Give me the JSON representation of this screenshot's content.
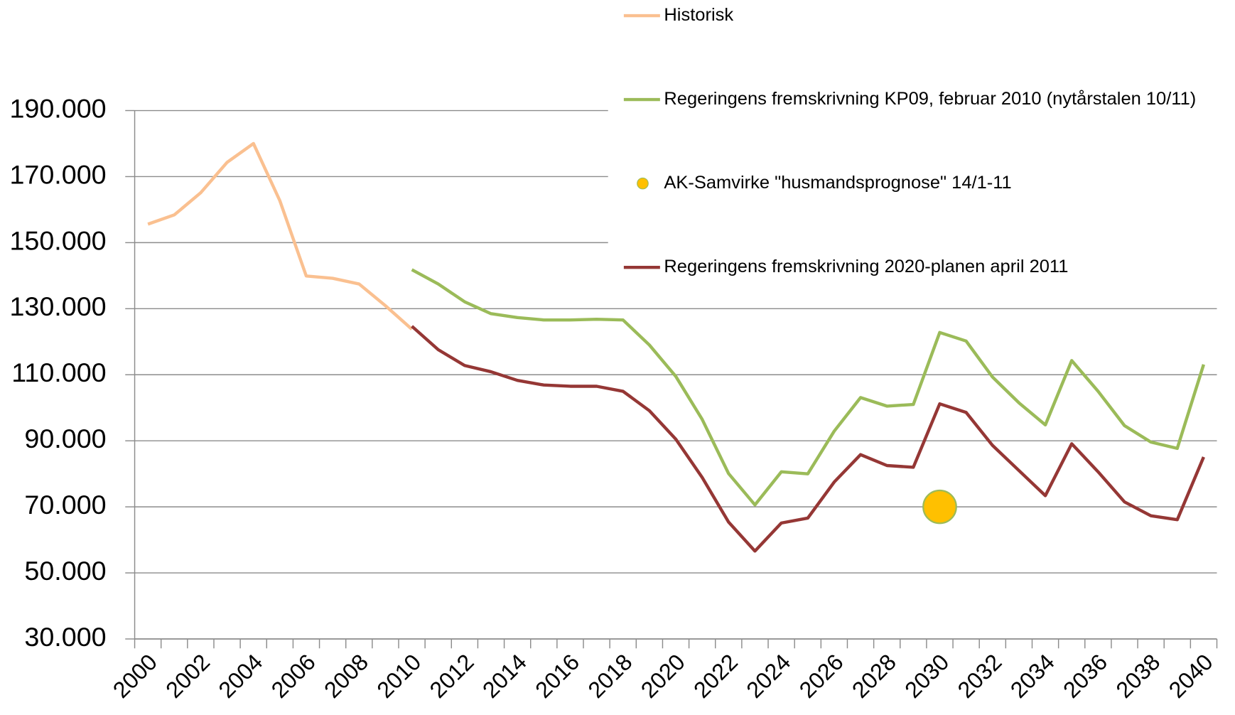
{
  "chart_data": {
    "type": "line",
    "categories": [
      "2000",
      null,
      "2002",
      null,
      "2004",
      null,
      "2006",
      null,
      "2008",
      null,
      "2010",
      null,
      "2012",
      null,
      "2014",
      null,
      "2016",
      null,
      "2018",
      null,
      "2020",
      null,
      "2022",
      null,
      "2024",
      null,
      "2026",
      null,
      "2028",
      null,
      "2030",
      null,
      "2032",
      null,
      "2034",
      null,
      "2036",
      null,
      "2038",
      null,
      "2040"
    ],
    "ylim": [
      30000,
      190000
    ],
    "yticks": [
      {
        "value": 30000,
        "label": "30.000"
      },
      {
        "value": 50000,
        "label": "50.000"
      },
      {
        "value": 70000,
        "label": "70.000"
      },
      {
        "value": 90000,
        "label": "90.000"
      },
      {
        "value": 110000,
        "label": "110.000"
      },
      {
        "value": 130000,
        "label": "130.000"
      },
      {
        "value": 150000,
        "label": "150.000"
      },
      {
        "value": 170000,
        "label": "170.000"
      },
      {
        "value": 190000,
        "label": "190.000"
      }
    ],
    "grid": true,
    "legend": "top-right",
    "series": [
      {
        "name": "Historisk",
        "type": "line",
        "color": "#fac090",
        "values": [
          155600,
          158400,
          165100,
          174300,
          180000,
          162700,
          139900,
          139200,
          137500,
          130900,
          123800,
          null,
          null,
          null,
          null,
          null,
          null,
          null,
          null,
          null,
          null,
          null,
          null,
          null,
          null,
          null,
          null,
          null,
          null,
          null,
          null,
          null,
          null,
          null,
          null,
          null,
          null,
          null,
          null,
          null,
          null
        ]
      },
      {
        "name": "Regeringens fremskrivning KP09, februar 2010 (nytårstalen 10/11)",
        "type": "line",
        "color": "#9bbb59",
        "values": [
          null,
          null,
          null,
          null,
          null,
          null,
          null,
          null,
          null,
          null,
          141800,
          137500,
          132100,
          128500,
          127300,
          126600,
          126600,
          126800,
          126600,
          119000,
          109500,
          96500,
          80100,
          70600,
          80600,
          80000,
          92900,
          103100,
          100500,
          101000,
          122800,
          120200,
          109300,
          101500,
          94800,
          114300,
          105000,
          94600,
          89600,
          87700,
          113100
        ]
      },
      {
        "name": "AK-Samvirke \"husmandsprognose\" 14/1-11",
        "type": "scatter",
        "color": "#ffc000",
        "values": [
          null,
          null,
          null,
          null,
          null,
          null,
          null,
          null,
          null,
          null,
          null,
          null,
          null,
          null,
          null,
          null,
          null,
          null,
          null,
          null,
          null,
          null,
          null,
          null,
          null,
          null,
          null,
          null,
          null,
          null,
          70000,
          null,
          null,
          null,
          null,
          null,
          null,
          null,
          null,
          null,
          null
        ]
      },
      {
        "name": "Regeringens fremskrivning 2020-planen april 2011",
        "type": "line",
        "color": "#953735",
        "values": [
          null,
          null,
          null,
          null,
          null,
          null,
          null,
          null,
          null,
          null,
          124700,
          117600,
          112800,
          110900,
          108300,
          106900,
          106500,
          106500,
          105000,
          99100,
          90500,
          78900,
          65400,
          56600,
          65100,
          66600,
          77500,
          85800,
          82500,
          82000,
          101200,
          98600,
          88600,
          81000,
          73400,
          89100,
          80600,
          71500,
          67300,
          66100,
          85100
        ]
      }
    ]
  }
}
